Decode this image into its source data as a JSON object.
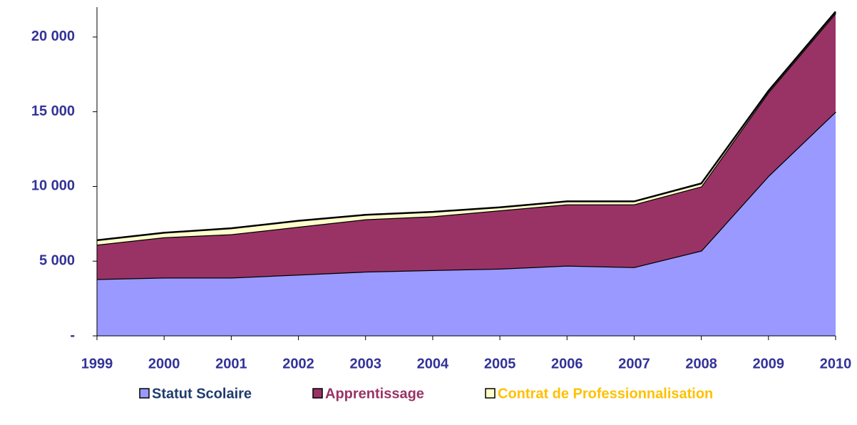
{
  "chart_data": {
    "type": "stacked_area",
    "categories": [
      "1999",
      "2000",
      "2001",
      "2002",
      "2003",
      "2004",
      "2005",
      "2006",
      "2007",
      "2008",
      "2009",
      "2010"
    ],
    "series": [
      {
        "name": "Statut Scolaire",
        "color": "#9999ff",
        "label_color": "#1f3b6e",
        "values": [
          3800,
          3900,
          3900,
          4100,
          4300,
          4400,
          4500,
          4700,
          4600,
          5700,
          10700,
          15000
        ]
      },
      {
        "name": "Apprentissage",
        "color": "#993366",
        "label_color": "#993366",
        "values": [
          2300,
          2700,
          2900,
          3200,
          3500,
          3600,
          3900,
          4100,
          4200,
          4300,
          5600,
          6600
        ]
      },
      {
        "name": "Contrat de Professionnalisation",
        "color": "#ffffcc",
        "label_color": "#ffc000",
        "values": [
          300,
          300,
          400,
          400,
          300,
          300,
          200,
          200,
          200,
          200,
          100,
          100
        ]
      }
    ],
    "ylim": [
      0,
      22000
    ],
    "yticks": [
      {
        "value": 0,
        "label": "-"
      },
      {
        "value": 5000,
        "label": "5 000"
      },
      {
        "value": 10000,
        "label": "10 000"
      },
      {
        "value": 15000,
        "label": "15 000"
      },
      {
        "value": 20000,
        "label": "20 000"
      }
    ],
    "grid": false,
    "legend": "bottom"
  }
}
